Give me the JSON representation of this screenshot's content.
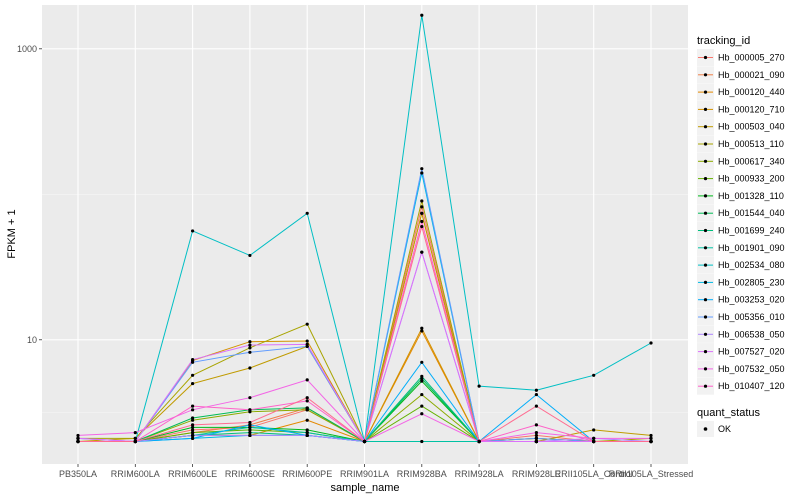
{
  "chart_data": {
    "type": "line",
    "xlabel": "sample_name",
    "ylabel": "FPKM + 1",
    "y_scale": "log10",
    "ylim": [
      1.4,
      2000
    ],
    "y_ticks": [
      10,
      1000
    ],
    "y_tick_labels": [
      "10",
      "1000"
    ],
    "grid": true,
    "legend_position": "right",
    "point_color": "#000000",
    "categories": [
      "PB350LA",
      "RRIM600LA",
      "RRIM600LE",
      "RRIM600SE",
      "RRIM600PE",
      "RRIM901LA",
      "RRIM928BA",
      "RRIM928LA",
      "RRIM928LE",
      "RRII105LA_Control",
      "RRII105LA_Stressed"
    ],
    "legend": {
      "title": "tracking_id",
      "status_title": "quant_status",
      "status_label": "OK"
    },
    "series": [
      {
        "name": "Hb_000005_270",
        "color": "#F8766D",
        "values": [
          2.0,
          2.0,
          2.4,
          2.5,
          3.3,
          2.0,
          82,
          2.0,
          2.2,
          2.0,
          2.0
        ]
      },
      {
        "name": "Hb_000021_090",
        "color": "#EF7F49",
        "values": [
          2.0,
          2.0,
          2.3,
          2.6,
          3.4,
          2.0,
          74,
          2.0,
          2.1,
          2.0,
          2.0
        ]
      },
      {
        "name": "Hb_000120_440",
        "color": "#E38900",
        "values": [
          2.0,
          2.0,
          2.2,
          2.2,
          2.8,
          2.0,
          11.5,
          2.0,
          2.0,
          2.0,
          2.0
        ]
      },
      {
        "name": "Hb_000120_710",
        "color": "#D39200",
        "values": [
          2.0,
          2.0,
          7.2,
          9.7,
          9.8,
          2.0,
          12.0,
          2.0,
          2.0,
          2.0,
          2.0
        ]
      },
      {
        "name": "Hb_000503_040",
        "color": "#C09B00",
        "values": [
          2.0,
          2.1,
          5.0,
          6.4,
          9.0,
          2.0,
          74,
          2.0,
          2.0,
          2.4,
          2.2
        ]
      },
      {
        "name": "Hb_000513_110",
        "color": "#A8A400",
        "values": [
          2.1,
          2.1,
          5.7,
          8.8,
          12.8,
          2.0,
          90,
          2.0,
          2.0,
          2.0,
          2.1
        ]
      },
      {
        "name": "Hb_000617_340",
        "color": "#8CAB00",
        "values": [
          2.0,
          2.0,
          2.8,
          3.2,
          3.3,
          2.0,
          4.2,
          2.0,
          2.0,
          2.0,
          2.0
        ]
      },
      {
        "name": "Hb_000933_200",
        "color": "#64B200",
        "values": [
          2.0,
          2.0,
          2.3,
          2.4,
          2.3,
          2.0,
          3.5,
          2.0,
          2.1,
          2.0,
          2.0
        ]
      },
      {
        "name": "Hb_001328_110",
        "color": "#00B81B",
        "values": [
          2.0,
          2.0,
          2.5,
          2.5,
          2.4,
          2.0,
          5.2,
          2.0,
          2.0,
          2.0,
          2.0
        ]
      },
      {
        "name": "Hb_001544_040",
        "color": "#00BC56",
        "values": [
          2.0,
          2.0,
          2.9,
          3.3,
          3.4,
          2.0,
          5.4,
          2.0,
          2.0,
          2.0,
          2.0
        ]
      },
      {
        "name": "Hb_001699_240",
        "color": "#00BF7D",
        "values": [
          2.0,
          2.0,
          2.2,
          2.3,
          2.2,
          2.0,
          5.6,
          2.0,
          2.0,
          2.0,
          2.0
        ]
      },
      {
        "name": "Hb_001901_090",
        "color": "#00C1A3",
        "values": [
          2.0,
          2.0,
          2.2,
          2.5,
          2.3,
          2.0,
          2.0,
          2.0,
          2.0,
          2.0,
          2.0
        ]
      },
      {
        "name": "Hb_002534_080",
        "color": "#00BFC4",
        "values": [
          2.0,
          2.0,
          56,
          38,
          74,
          2.0,
          1700,
          4.8,
          4.5,
          5.7,
          9.5
        ]
      },
      {
        "name": "Hb_002805_230",
        "color": "#00B8E5",
        "values": [
          2.0,
          2.0,
          2.1,
          2.2,
          2.2,
          2.0,
          140,
          2.0,
          2.0,
          2.0,
          2.0
        ]
      },
      {
        "name": "Hb_003253_020",
        "color": "#00ADFA",
        "values": [
          2.0,
          2.0,
          2.1,
          2.6,
          2.2,
          2.0,
          7.0,
          2.0,
          4.2,
          2.0,
          2.0
        ]
      },
      {
        "name": "Hb_005356_010",
        "color": "#619CFF",
        "values": [
          2.1,
          2.0,
          7.0,
          8.2,
          9.0,
          2.0,
          150,
          2.0,
          2.1,
          2.0,
          2.0
        ]
      },
      {
        "name": "Hb_006538_050",
        "color": "#AE87FF",
        "values": [
          2.1,
          2.0,
          2.2,
          2.2,
          2.2,
          2.0,
          40,
          2.0,
          2.0,
          2.1,
          2.0
        ]
      },
      {
        "name": "Hb_007527_020",
        "color": "#DB72FB",
        "values": [
          2.1,
          2.0,
          7.3,
          9.2,
          9.3,
          2.0,
          40,
          2.0,
          2.0,
          2.0,
          2.0
        ]
      },
      {
        "name": "Hb_007532_050",
        "color": "#F365E6",
        "values": [
          2.2,
          2.3,
          3.3,
          4.0,
          5.3,
          2.0,
          3.1,
          2.0,
          2.3,
          2.1,
          2.1
        ]
      },
      {
        "name": "Hb_010407_120",
        "color": "#FF61C9",
        "values": [
          2.0,
          2.0,
          3.5,
          3.3,
          3.8,
          2.0,
          65,
          2.0,
          2.6,
          2.0,
          2.0
        ]
      },
      {
        "name": "",
        "color": "#FF6C91",
        "values": [
          2.0,
          2.0,
          2.6,
          2.7,
          4.0,
          2.0,
          60,
          2.0,
          3.5,
          2.0,
          2.0
        ]
      }
    ]
  }
}
